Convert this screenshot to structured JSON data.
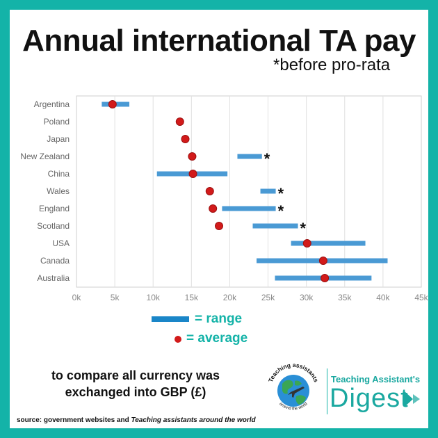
{
  "header": {
    "title": "Annual international TA pay",
    "subtitle": "*before pro-rata"
  },
  "legend": {
    "range_label": "= range",
    "average_label": "= average"
  },
  "note": "to compare all currency was exchanged into GBP (£)",
  "source": {
    "prefix": "source: government websites and ",
    "italic": "Teaching assistants around the world"
  },
  "logo": {
    "badge_text_top": "Teaching assistants",
    "badge_text_bottom": "around the world",
    "brand_top": "Teaching Assistant's",
    "brand_main": "Digest"
  },
  "colors": {
    "background": "#14b3a8",
    "range": "#4a9ad4",
    "average": "#d21a1a",
    "accent": "#14b3a8"
  },
  "chart_data": {
    "type": "bar",
    "orientation": "horizontal",
    "categories": [
      "Argentina",
      "Poland",
      "Japan",
      "New Zealand",
      "China",
      "Wales",
      "England",
      "Scotland",
      "USA",
      "Canada",
      "Australia"
    ],
    "series": [
      {
        "name": "range",
        "kind": "range",
        "values": [
          [
            3300,
            6900
          ],
          null,
          null,
          [
            21000,
            24200
          ],
          [
            10500,
            19700
          ],
          [
            24000,
            26000
          ],
          [
            19000,
            26000
          ],
          [
            23000,
            28900
          ],
          [
            28000,
            37700
          ],
          [
            23500,
            40600
          ],
          [
            25900,
            38500
          ]
        ]
      },
      {
        "name": "average",
        "kind": "point",
        "values": [
          4700,
          13500,
          14200,
          15100,
          15200,
          17400,
          17800,
          18600,
          30100,
          32200,
          32400
        ]
      }
    ],
    "markers": {
      "New Zealand": "*",
      "Wales": "*",
      "England": "*",
      "Scotland": "*"
    },
    "xticks": [
      "0k",
      "5k",
      "10k",
      "15k",
      "20k",
      "25k",
      "30k",
      "35k",
      "40k",
      "45k"
    ],
    "xlim": [
      0,
      45000
    ],
    "grid": true,
    "xlabel": "",
    "ylabel": ""
  }
}
